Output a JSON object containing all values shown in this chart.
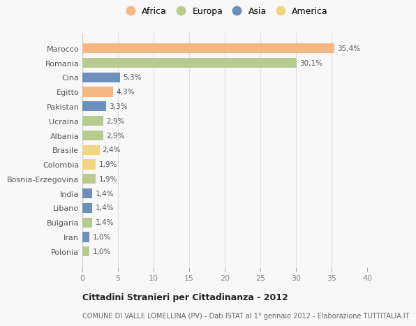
{
  "categories": [
    "Marocco",
    "Romania",
    "Cina",
    "Egitto",
    "Pakistan",
    "Ucraina",
    "Albania",
    "Brasile",
    "Colombia",
    "Bosnia-Erzegovina",
    "India",
    "Libano",
    "Bulgaria",
    "Iran",
    "Polonia"
  ],
  "values": [
    35.4,
    30.1,
    5.3,
    4.3,
    3.3,
    2.9,
    2.9,
    2.4,
    1.9,
    1.9,
    1.4,
    1.4,
    1.4,
    1.0,
    1.0
  ],
  "labels": [
    "35,4%",
    "30,1%",
    "5,3%",
    "4,3%",
    "3,3%",
    "2,9%",
    "2,9%",
    "2,4%",
    "1,9%",
    "1,9%",
    "1,4%",
    "1,4%",
    "1,4%",
    "1,0%",
    "1,0%"
  ],
  "continents": [
    "Africa",
    "Europa",
    "Asia",
    "Africa",
    "Asia",
    "Europa",
    "Europa",
    "America",
    "America",
    "Europa",
    "Asia",
    "Asia",
    "Europa",
    "Asia",
    "Europa"
  ],
  "colors": {
    "Africa": "#F5B885",
    "Europa": "#B8CB8E",
    "Asia": "#6E8FBA",
    "America": "#F2D580"
  },
  "xlim": [
    0,
    40
  ],
  "xticks": [
    0,
    5,
    10,
    15,
    20,
    25,
    30,
    35,
    40
  ],
  "title": "Cittadini Stranieri per Cittadinanza - 2012",
  "subtitle": "COMUNE DI VALLE LOMELLINA (PV) - Dati ISTAT al 1° gennaio 2012 - Elaborazione TUTTITALIA.IT",
  "background_color": "#f8f8f8",
  "grid_color": "#e0e0e0",
  "bar_height": 0.68,
  "legend_order": [
    "Africa",
    "Europa",
    "Asia",
    "America"
  ]
}
